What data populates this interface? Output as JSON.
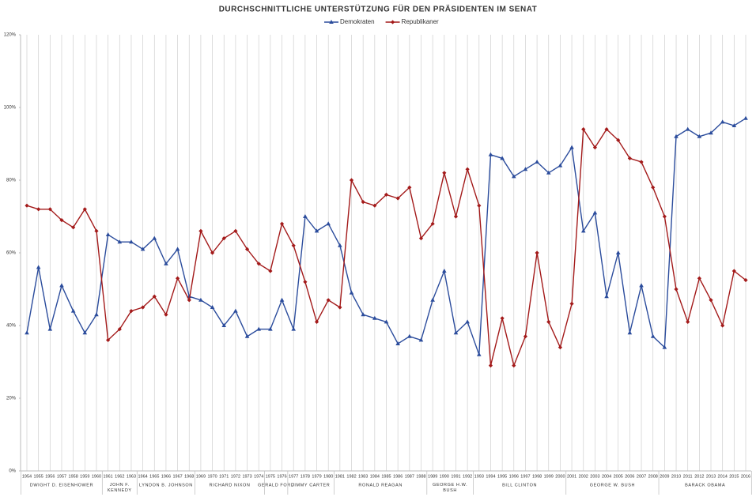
{
  "chart_data": {
    "type": "line",
    "title": "DURCHSCHNITTLICHE UNTERSTÜTZUNG FÜR DEN PRÄSIDENTEN IM SENAT",
    "categories": [
      "1954",
      "1955",
      "1956",
      "1957",
      "1958",
      "1959",
      "1960",
      "1961",
      "1962",
      "1963",
      "1964",
      "1965",
      "1966",
      "1967",
      "1968",
      "1969",
      "1970",
      "1971",
      "1972",
      "1973",
      "1974",
      "1975",
      "1976",
      "1977",
      "1978",
      "1979",
      "1980",
      "1981",
      "1982",
      "1983",
      "1984",
      "1985",
      "1986",
      "1987",
      "1988",
      "1989",
      "1990",
      "1991",
      "1992",
      "1993",
      "1994",
      "1995",
      "1996",
      "1997",
      "1998",
      "1999",
      "2000",
      "2001",
      "2002",
      "2003",
      "2004",
      "2005",
      "2006",
      "2007",
      "2008",
      "2009",
      "2010",
      "2011",
      "2012",
      "2013",
      "2014",
      "2015",
      "2016"
    ],
    "series": [
      {
        "name": "Demokraten",
        "color": "#2b4c9c",
        "marker": "triangle",
        "values": [
          38,
          56,
          39,
          51,
          44,
          38,
          43,
          65,
          63,
          63,
          61,
          64,
          57,
          61,
          48,
          47,
          45,
          40,
          44,
          37,
          39,
          39,
          47,
          39,
          70,
          66,
          68,
          62,
          49,
          43,
          42,
          41,
          35,
          37,
          36,
          47,
          55,
          38,
          41,
          32,
          87,
          86,
          81,
          83,
          85,
          82,
          84,
          89,
          66,
          71,
          48,
          60,
          38,
          51,
          37,
          34,
          92,
          94,
          92,
          93,
          96,
          95,
          97
        ]
      },
      {
        "name": "Republikaner",
        "color": "#a31a1a",
        "marker": "diamond",
        "values": [
          73,
          72,
          72,
          69,
          67,
          72,
          66,
          36,
          39,
          44,
          45,
          48,
          43,
          53,
          47,
          66,
          60,
          64,
          66,
          61,
          57,
          55,
          68,
          62,
          52,
          41,
          47,
          45,
          80,
          74,
          73,
          76,
          75,
          78,
          64,
          68,
          82,
          70,
          83,
          73,
          29,
          42,
          29,
          37,
          60,
          41,
          34,
          46,
          94,
          89,
          94,
          91,
          86,
          85,
          78,
          70,
          50,
          41,
          53,
          47,
          40,
          55,
          52.5
        ]
      }
    ],
    "ylim": [
      0,
      120
    ],
    "yticks": [
      {
        "value": 0,
        "label": "0%"
      },
      {
        "value": 20,
        "label": "20%"
      },
      {
        "value": 40,
        "label": "40%"
      },
      {
        "value": 60,
        "label": "60%"
      },
      {
        "value": 80,
        "label": "80%"
      },
      {
        "value": 100,
        "label": "100%"
      },
      {
        "value": 120,
        "label": "120%"
      }
    ],
    "grid": "vertical",
    "legend": "top",
    "groups": [
      {
        "label": "DWIGHT D. EISENHOWER",
        "first": "1954",
        "last": "1960"
      },
      {
        "label": "JOHN F. KENNEDY",
        "first": "1961",
        "last": "1963"
      },
      {
        "label": "LYNDON B. JOHNSON",
        "first": "1964",
        "last": "1968"
      },
      {
        "label": "RICHARD NIXON",
        "first": "1969",
        "last": "1974"
      },
      {
        "label": "GERALD FORD",
        "first": "1975",
        "last": "1976"
      },
      {
        "label": "JIMMY CARTER",
        "first": "1977",
        "last": "1980"
      },
      {
        "label": "RONALD REAGAN",
        "first": "1981",
        "last": "1988"
      },
      {
        "label": "GEORGE H.W. BUSH",
        "first": "1989",
        "last": "1992"
      },
      {
        "label": "BILL CLINTON",
        "first": "1993",
        "last": "2000"
      },
      {
        "label": "GEORGE W. BUSH",
        "first": "2001",
        "last": "2008"
      },
      {
        "label": "BARACK OBAMA",
        "first": "2009",
        "last": "2016"
      }
    ]
  }
}
